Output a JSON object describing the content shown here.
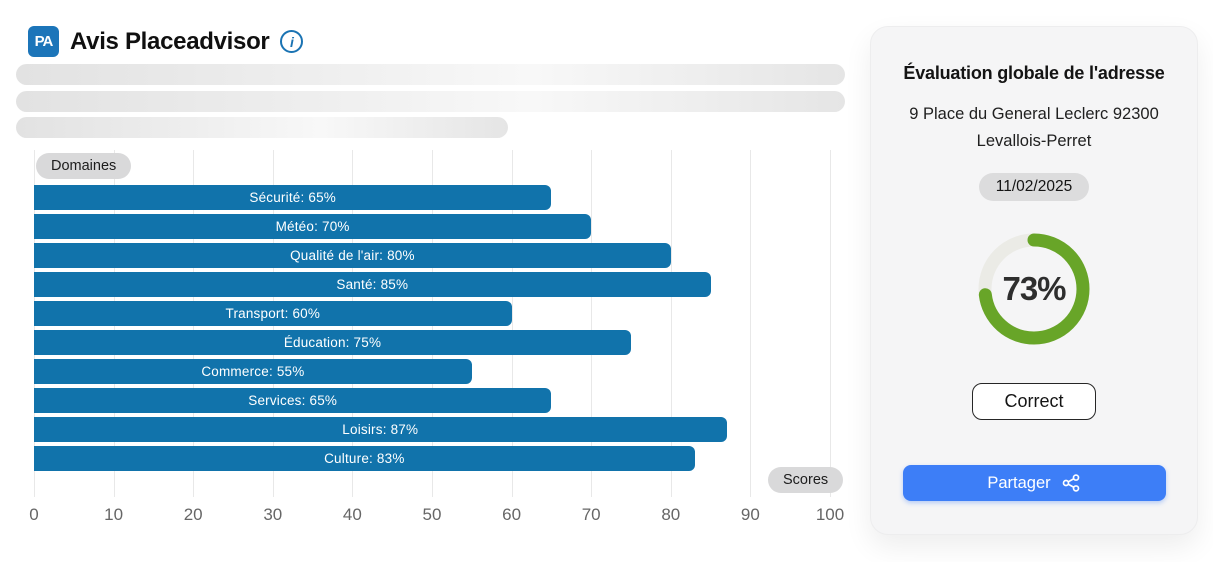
{
  "header": {
    "logo_text": "PA",
    "title": "Avis Placeadvisor",
    "info_icon": "info-icon"
  },
  "chart_data": {
    "type": "bar",
    "orientation": "horizontal",
    "categories": [
      "Sécurité",
      "Météo",
      "Qualité de l'air",
      "Santé",
      "Transport",
      "Éducation",
      "Commerce",
      "Services",
      "Loisirs",
      "Culture"
    ],
    "values": [
      65,
      70,
      80,
      85,
      60,
      75,
      55,
      65,
      87,
      83
    ],
    "label_format": "{category}: {value}%",
    "xlim": [
      0,
      100
    ],
    "x_ticks": [
      0,
      10,
      20,
      30,
      40,
      50,
      60,
      70,
      80,
      90,
      100
    ],
    "axis_badges": {
      "y": "Domaines",
      "x": "Scores"
    },
    "bar_color": "#1173ab",
    "grid": true,
    "legend": "none"
  },
  "panel": {
    "title": "Évaluation globale de l'adresse",
    "address_line1": "9 Place du General Leclerc 92300",
    "address_line2": "Levallois-Perret",
    "date": "11/02/2025",
    "score_value": 73,
    "score_percent": "73%",
    "score_color": "#68a528",
    "score_track_color": "#ebebe6",
    "rating_label": "Correct",
    "share_label": "Partager",
    "share_icon": "share-nodes-icon",
    "share_button_color": "#3d7ef7"
  }
}
